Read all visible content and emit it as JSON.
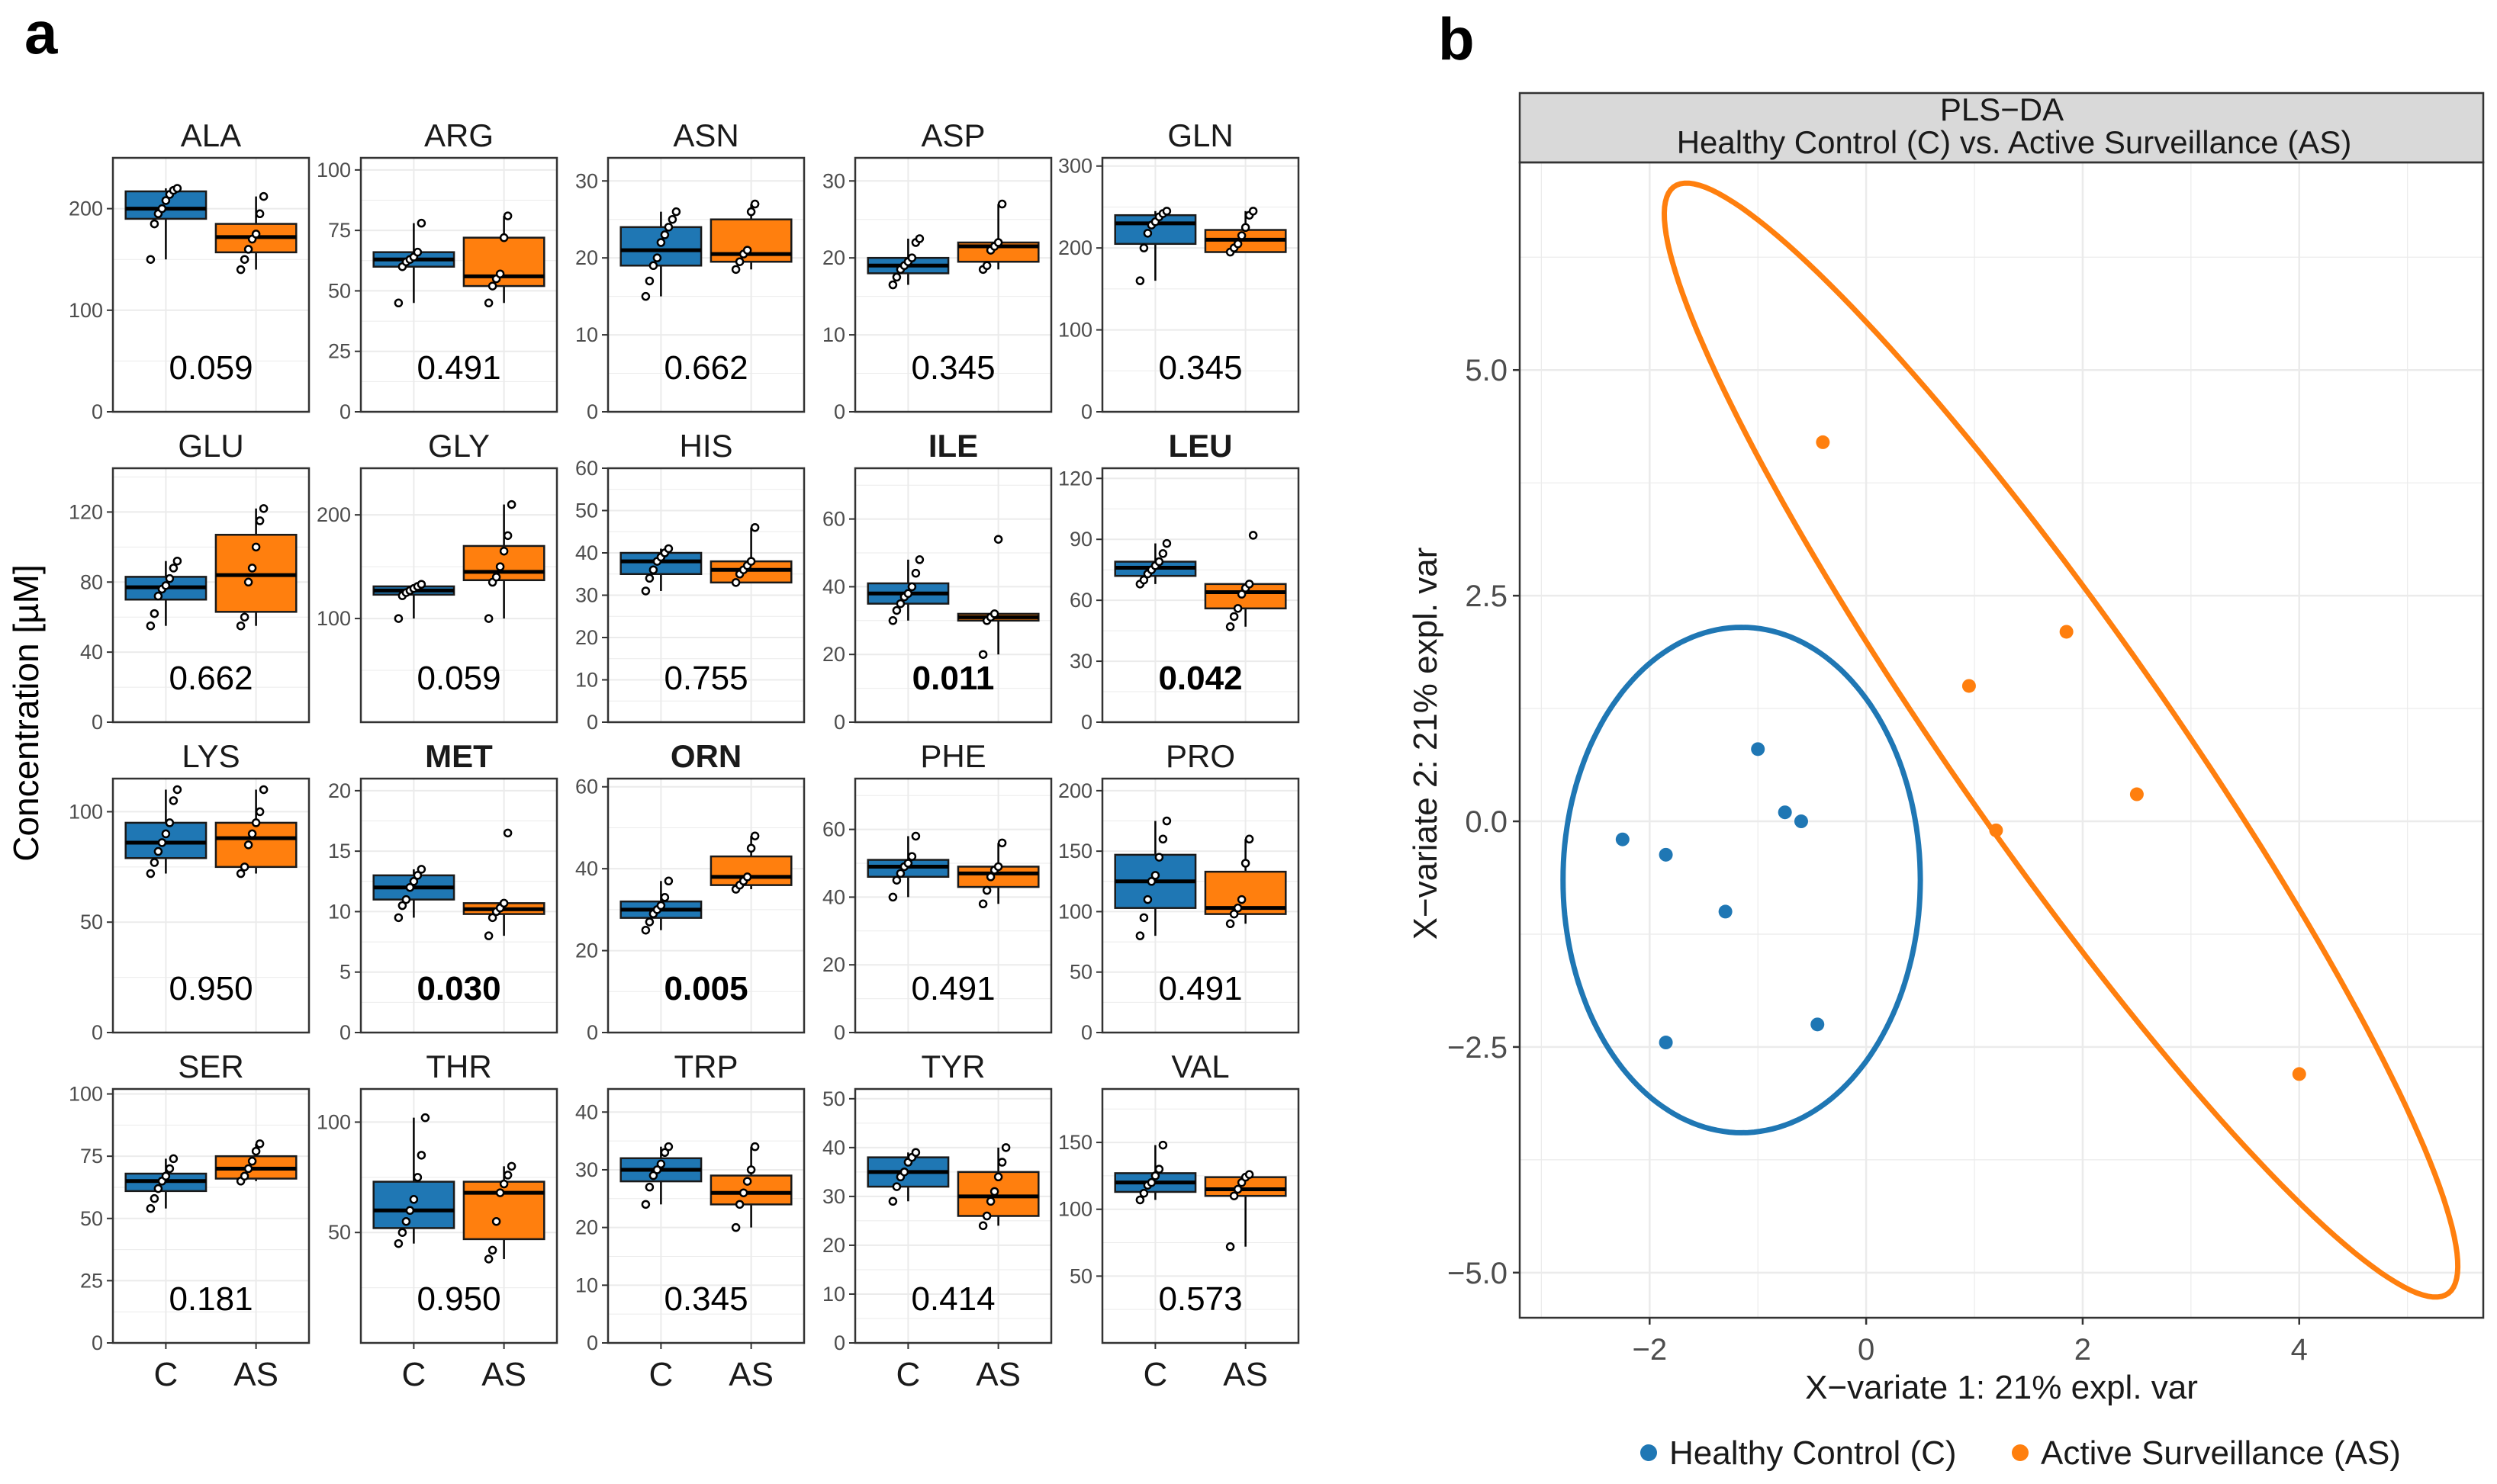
{
  "panel_labels": {
    "a": "a",
    "b": "b"
  },
  "colors": {
    "control": "#1f77b4",
    "surveillance": "#ff7f0e",
    "strip": "#d9d9d9",
    "grid": "#ebebeb",
    "axis": "#333333",
    "median": "#000000"
  },
  "chart_data": [
    {
      "type": "box",
      "panel": "a",
      "ylabel": "Concentration [µM]",
      "xcategories": [
        "C",
        "AS"
      ],
      "groups": [
        "C",
        "AS"
      ],
      "plots": [
        {
          "name": "ALA",
          "pvalue": "0.059",
          "bold": false,
          "ylim": [
            0,
            250
          ],
          "yticks": [
            0,
            100,
            200
          ],
          "box_C": {
            "q1": 190,
            "median": 200,
            "q3": 217,
            "lo": 150,
            "hi": 220
          },
          "pts_C": [
            150,
            185,
            195,
            200,
            208,
            214,
            218,
            220
          ],
          "box_AS": {
            "q1": 157,
            "median": 172,
            "q3": 185,
            "lo": 140,
            "hi": 212
          },
          "pts_AS": [
            140,
            150,
            160,
            170,
            175,
            195,
            212
          ]
        },
        {
          "name": "ARG",
          "pvalue": "0.491",
          "bold": false,
          "ylim": [
            0,
            105
          ],
          "yticks": [
            0,
            25,
            50,
            75,
            100
          ],
          "box_C": {
            "q1": 60,
            "median": 63,
            "q3": 66,
            "lo": 45,
            "hi": 78
          },
          "pts_C": [
            45,
            60,
            62,
            63,
            64,
            66,
            78
          ],
          "box_AS": {
            "q1": 52,
            "median": 56,
            "q3": 72,
            "lo": 45,
            "hi": 81
          },
          "pts_AS": [
            45,
            52,
            55,
            57,
            72,
            81
          ]
        },
        {
          "name": "ASN",
          "pvalue": "0.662",
          "bold": false,
          "ylim": [
            0,
            33
          ],
          "yticks": [
            0,
            10,
            20,
            30
          ],
          "box_C": {
            "q1": 19,
            "median": 21,
            "q3": 24,
            "lo": 15,
            "hi": 26
          },
          "pts_C": [
            15,
            17,
            19,
            20,
            22,
            23,
            24,
            25,
            26
          ],
          "box_AS": {
            "q1": 19.5,
            "median": 20.5,
            "q3": 25,
            "lo": 18.5,
            "hi": 27
          },
          "pts_AS": [
            18.5,
            19.5,
            20.5,
            21,
            26,
            27
          ]
        },
        {
          "name": "ASP",
          "pvalue": "0.345",
          "bold": false,
          "ylim": [
            0,
            33
          ],
          "yticks": [
            0,
            10,
            20,
            30
          ],
          "box_C": {
            "q1": 18,
            "median": 19,
            "q3": 20,
            "lo": 16.5,
            "hi": 22.5
          },
          "pts_C": [
            16.5,
            17.5,
            18.5,
            19,
            19.5,
            20,
            22,
            22.5
          ],
          "box_AS": {
            "q1": 19.5,
            "median": 21.5,
            "q3": 22,
            "lo": 18.5,
            "hi": 27
          },
          "pts_AS": [
            18.5,
            19,
            21,
            21.5,
            22,
            27
          ]
        },
        {
          "name": "GLN",
          "pvalue": "0.345",
          "bold": false,
          "ylim": [
            0,
            310
          ],
          "yticks": [
            0,
            100,
            200,
            300
          ],
          "box_C": {
            "q1": 205,
            "median": 230,
            "q3": 240,
            "lo": 160,
            "hi": 245
          },
          "pts_C": [
            160,
            200,
            218,
            228,
            232,
            238,
            242,
            245
          ],
          "box_AS": {
            "q1": 195,
            "median": 210,
            "q3": 222,
            "lo": 195,
            "hi": 245
          },
          "pts_AS": [
            195,
            200,
            205,
            215,
            225,
            240,
            245
          ]
        },
        {
          "name": "GLU",
          "pvalue": "0.662",
          "bold": false,
          "ylim": [
            0,
            145
          ],
          "yticks": [
            0,
            40,
            80,
            120
          ],
          "box_C": {
            "q1": 70,
            "median": 77,
            "q3": 83,
            "lo": 55,
            "hi": 92
          },
          "pts_C": [
            55,
            62,
            72,
            76,
            78,
            82,
            88,
            92
          ],
          "box_AS": {
            "q1": 63,
            "median": 84,
            "q3": 107,
            "lo": 55,
            "hi": 122
          },
          "pts_AS": [
            55,
            60,
            80,
            88,
            100,
            115,
            122
          ]
        },
        {
          "name": "GLY",
          "pvalue": "0.059",
          "bold": false,
          "ylim": [
            0,
            245
          ],
          "yticks": [
            100,
            200
          ],
          "box_C": {
            "q1": 123,
            "median": 127,
            "q3": 131,
            "lo": 100,
            "hi": 133
          },
          "pts_C": [
            100,
            122,
            125,
            127,
            129,
            131,
            133
          ],
          "box_AS": {
            "q1": 137,
            "median": 145,
            "q3": 170,
            "lo": 100,
            "hi": 210
          },
          "pts_AS": [
            100,
            135,
            140,
            150,
            165,
            180,
            210
          ]
        },
        {
          "name": "HIS",
          "pvalue": "0.755",
          "bold": false,
          "ylim": [
            0,
            60
          ],
          "yticks": [
            0,
            10,
            20,
            30,
            40,
            50,
            60
          ],
          "box_C": {
            "q1": 35,
            "median": 38,
            "q3": 40,
            "lo": 31,
            "hi": 41
          },
          "pts_C": [
            31,
            34,
            36,
            38,
            39,
            40,
            41
          ],
          "box_AS": {
            "q1": 33,
            "median": 36,
            "q3": 38,
            "lo": 33,
            "hi": 46
          },
          "pts_AS": [
            33,
            35,
            36,
            37,
            38,
            46
          ]
        },
        {
          "name": "ILE",
          "pvalue": "0.011",
          "bold": true,
          "ylim": [
            0,
            75
          ],
          "yticks": [
            0,
            20,
            40,
            60
          ],
          "box_C": {
            "q1": 35,
            "median": 38,
            "q3": 41,
            "lo": 30,
            "hi": 48
          },
          "pts_C": [
            30,
            33,
            35,
            37,
            38,
            40,
            44,
            48
          ],
          "box_AS": {
            "q1": 30,
            "median": 31,
            "q3": 32,
            "lo": 20,
            "hi": 32
          },
          "pts_AS": [
            20,
            30,
            31,
            32,
            54
          ]
        },
        {
          "name": "LEU",
          "pvalue": "0.042",
          "bold": true,
          "ylim": [
            0,
            125
          ],
          "yticks": [
            0,
            30,
            60,
            90,
            120
          ],
          "box_C": {
            "q1": 72,
            "median": 76,
            "q3": 79,
            "lo": 68,
            "hi": 88
          },
          "pts_C": [
            68,
            70,
            73,
            75,
            77,
            79,
            83,
            88
          ],
          "box_AS": {
            "q1": 56,
            "median": 64,
            "q3": 68,
            "lo": 47,
            "hi": 68
          },
          "pts_AS": [
            47,
            52,
            56,
            63,
            66,
            68,
            92
          ]
        },
        {
          "name": "LYS",
          "pvalue": "0.950",
          "bold": false,
          "ylim": [
            0,
            115
          ],
          "yticks": [
            0,
            50,
            100
          ],
          "box_C": {
            "q1": 79,
            "median": 86,
            "q3": 95,
            "lo": 72,
            "hi": 110
          },
          "pts_C": [
            72,
            77,
            82,
            86,
            90,
            95,
            105,
            110
          ],
          "box_AS": {
            "q1": 75,
            "median": 88,
            "q3": 95,
            "lo": 72,
            "hi": 110
          },
          "pts_AS": [
            72,
            75,
            85,
            90,
            95,
            100,
            110
          ]
        },
        {
          "name": "MET",
          "pvalue": "0.030",
          "bold": true,
          "ylim": [
            0,
            21
          ],
          "yticks": [
            0,
            5,
            10,
            15,
            20
          ],
          "box_C": {
            "q1": 11,
            "median": 12,
            "q3": 13,
            "lo": 9.5,
            "hi": 13.5
          },
          "pts_C": [
            9.5,
            10.5,
            11,
            12,
            12.5,
            13,
            13.5
          ],
          "box_AS": {
            "q1": 9.8,
            "median": 10.2,
            "q3": 10.7,
            "lo": 8,
            "hi": 10.7
          },
          "pts_AS": [
            8,
            9.5,
            10,
            10.3,
            10.7,
            16.5
          ]
        },
        {
          "name": "ORN",
          "pvalue": "0.005",
          "bold": true,
          "ylim": [
            0,
            62
          ],
          "yticks": [
            0,
            20,
            40,
            60
          ],
          "box_C": {
            "q1": 28,
            "median": 30,
            "q3": 32,
            "lo": 25,
            "hi": 37
          },
          "pts_C": [
            25,
            27,
            29,
            30,
            31,
            33,
            37
          ],
          "box_AS": {
            "q1": 36,
            "median": 38,
            "q3": 43,
            "lo": 35,
            "hi": 48
          },
          "pts_AS": [
            35,
            36,
            37,
            38,
            45,
            48
          ]
        },
        {
          "name": "PHE",
          "pvalue": "0.491",
          "bold": false,
          "ylim": [
            0,
            75
          ],
          "yticks": [
            0,
            20,
            40,
            60
          ],
          "box_C": {
            "q1": 46,
            "median": 49,
            "q3": 51,
            "lo": 40,
            "hi": 58
          },
          "pts_C": [
            40,
            45,
            47,
            49,
            50,
            52,
            58
          ],
          "box_AS": {
            "q1": 43,
            "median": 47,
            "q3": 49,
            "lo": 38,
            "hi": 56
          },
          "pts_AS": [
            38,
            42,
            46,
            48,
            49,
            56
          ]
        },
        {
          "name": "PRO",
          "pvalue": "0.491",
          "bold": false,
          "ylim": [
            0,
            210
          ],
          "yticks": [
            0,
            50,
            100,
            150,
            200
          ],
          "box_C": {
            "q1": 103,
            "median": 125,
            "q3": 147,
            "lo": 80,
            "hi": 175
          },
          "pts_C": [
            80,
            95,
            110,
            125,
            130,
            145,
            160,
            175
          ],
          "box_AS": {
            "q1": 98,
            "median": 103,
            "q3": 133,
            "lo": 90,
            "hi": 160
          },
          "pts_AS": [
            90,
            98,
            103,
            110,
            140,
            160
          ]
        },
        {
          "name": "SER",
          "pvalue": "0.181",
          "bold": false,
          "ylim": [
            0,
            102
          ],
          "yticks": [
            0,
            25,
            50,
            75,
            100
          ],
          "box_C": {
            "q1": 61,
            "median": 65,
            "q3": 68,
            "lo": 54,
            "hi": 74
          },
          "pts_C": [
            54,
            58,
            62,
            65,
            67,
            70,
            74
          ],
          "box_AS": {
            "q1": 66,
            "median": 70,
            "q3": 75,
            "lo": 65,
            "hi": 80
          },
          "pts_AS": [
            65,
            67,
            70,
            73,
            77,
            80
          ]
        },
        {
          "name": "THR",
          "pvalue": "0.950",
          "bold": false,
          "ylim": [
            0,
            115
          ],
          "yticks": [
            50,
            100
          ],
          "box_C": {
            "q1": 52,
            "median": 60,
            "q3": 73,
            "lo": 45,
            "hi": 102
          },
          "pts_C": [
            45,
            50,
            55,
            60,
            65,
            75,
            85,
            102
          ],
          "box_AS": {
            "q1": 47,
            "median": 68,
            "q3": 73,
            "lo": 38,
            "hi": 80
          },
          "pts_AS": [
            38,
            42,
            55,
            68,
            72,
            76,
            80
          ]
        },
        {
          "name": "TRP",
          "pvalue": "0.345",
          "bold": false,
          "ylim": [
            0,
            44
          ],
          "yticks": [
            0,
            10,
            20,
            30,
            40
          ],
          "box_C": {
            "q1": 28,
            "median": 30,
            "q3": 32,
            "lo": 24,
            "hi": 34
          },
          "pts_C": [
            24,
            27,
            29,
            30,
            31,
            33,
            34
          ],
          "box_AS": {
            "q1": 24,
            "median": 26,
            "q3": 29,
            "lo": 20,
            "hi": 34
          },
          "pts_AS": [
            20,
            24,
            26,
            28,
            30,
            34
          ]
        },
        {
          "name": "TYR",
          "pvalue": "0.414",
          "bold": false,
          "ylim": [
            0,
            52
          ],
          "yticks": [
            0,
            10,
            20,
            30,
            40,
            50
          ],
          "box_C": {
            "q1": 32,
            "median": 35,
            "q3": 38,
            "lo": 29,
            "hi": 39
          },
          "pts_C": [
            29,
            32,
            34,
            35,
            37,
            38,
            39
          ],
          "box_AS": {
            "q1": 26,
            "median": 30,
            "q3": 35,
            "lo": 24,
            "hi": 40
          },
          "pts_AS": [
            24,
            26,
            29,
            31,
            34,
            37,
            40
          ]
        },
        {
          "name": "VAL",
          "pvalue": "0.573",
          "bold": false,
          "ylim": [
            0,
            190
          ],
          "yticks": [
            50,
            100,
            150
          ],
          "box_C": {
            "q1": 113,
            "median": 120,
            "q3": 127,
            "lo": 107,
            "hi": 148
          },
          "pts_C": [
            107,
            112,
            118,
            120,
            125,
            130,
            148
          ],
          "box_AS": {
            "q1": 110,
            "median": 115,
            "q3": 124,
            "lo": 72,
            "hi": 126
          },
          "pts_AS": [
            72,
            110,
            115,
            120,
            124,
            126
          ]
        }
      ]
    },
    {
      "type": "scatter",
      "panel": "b",
      "title": "PLS−DA",
      "subtitle": "Healthy Control (C) vs. Active Surveillance (AS)",
      "xlabel": "X−variate 1: 21% expl. var",
      "ylabel": "X−variate 2: 21% expl. var",
      "xlim": [
        -3.2,
        5.7
      ],
      "ylim": [
        -5.5,
        7.3
      ],
      "xticks": [
        -2,
        0,
        2,
        4
      ],
      "xtick_labels": [
        "−2",
        "0",
        "2",
        "4"
      ],
      "yticks": [
        -5,
        -2.5,
        0,
        2.5,
        5
      ],
      "ytick_labels": [
        "−5.0",
        "−2.5",
        "0.0",
        "2.5",
        "5.0"
      ],
      "legend": {
        "position": "bottom",
        "items": [
          "Healthy Control (C)",
          "Active Surveillance (AS)"
        ]
      },
      "series": [
        {
          "name": "Healthy Control (C)",
          "points": [
            [
              -2.25,
              -0.2
            ],
            [
              -1.85,
              -0.37
            ],
            [
              -1.3,
              -1.0
            ],
            [
              -1.0,
              0.8
            ],
            [
              -0.75,
              0.1
            ],
            [
              -0.6,
              0.0
            ],
            [
              -0.45,
              -2.25
            ],
            [
              -1.85,
              -2.45
            ]
          ],
          "ellipse": {
            "cx": -1.15,
            "cy": -0.65,
            "rx": 1.65,
            "ry": 2.8,
            "angle_deg": 0
          }
        },
        {
          "name": "Active Surveillance (AS)",
          "points": [
            [
              -0.4,
              4.2
            ],
            [
              0.95,
              1.5
            ],
            [
              1.85,
              2.1
            ],
            [
              1.2,
              -0.1
            ],
            [
              2.5,
              0.3
            ],
            [
              4.0,
              -2.8
            ]
          ],
          "ellipse": {
            "cx": 1.8,
            "cy": 0.9,
            "rx": 7.1,
            "ry": 1.05,
            "angle_deg": -60
          }
        }
      ]
    }
  ]
}
